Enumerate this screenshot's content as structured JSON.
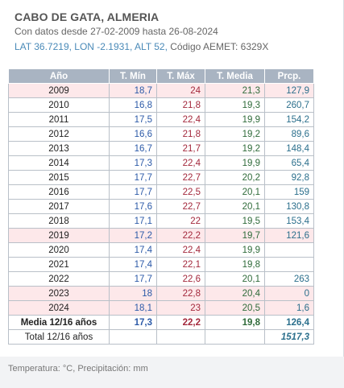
{
  "header": {
    "station": "CABO DE GATA, ALMERIA",
    "date_range": "Con datos desde 27-02-2009 hasta 26-08-2024",
    "coords": "LAT 36.7219, LON -2.1931, ALT 52,",
    "aemet_code": "Código AEMET: 6329X"
  },
  "table": {
    "columns": [
      "Año",
      "T. Mín",
      "T. Máx",
      "T. Media",
      "Prcp."
    ],
    "rows": [
      {
        "year": "2009",
        "tmin": "18,7",
        "tmax": "24",
        "tmed": "21,3",
        "prcp": "127,9",
        "highlight": true
      },
      {
        "year": "2010",
        "tmin": "16,8",
        "tmax": "21,8",
        "tmed": "19,3",
        "prcp": "260,7",
        "highlight": false
      },
      {
        "year": "2011",
        "tmin": "17,5",
        "tmax": "22,4",
        "tmed": "19,9",
        "prcp": "154,2",
        "highlight": false
      },
      {
        "year": "2012",
        "tmin": "16,6",
        "tmax": "21,8",
        "tmed": "19,2",
        "prcp": "89,6",
        "highlight": false
      },
      {
        "year": "2013",
        "tmin": "16,7",
        "tmax": "21,7",
        "tmed": "19,2",
        "prcp": "148,4",
        "highlight": false
      },
      {
        "year": "2014",
        "tmin": "17,3",
        "tmax": "22,4",
        "tmed": "19,9",
        "prcp": "65,4",
        "highlight": false
      },
      {
        "year": "2015",
        "tmin": "17,7",
        "tmax": "22,7",
        "tmed": "20,2",
        "prcp": "92,8",
        "highlight": false
      },
      {
        "year": "2016",
        "tmin": "17,7",
        "tmax": "22,5",
        "tmed": "20,1",
        "prcp": "159",
        "highlight": false
      },
      {
        "year": "2017",
        "tmin": "17,6",
        "tmax": "22,7",
        "tmed": "20,1",
        "prcp": "130,8",
        "highlight": false
      },
      {
        "year": "2018",
        "tmin": "17,1",
        "tmax": "22",
        "tmed": "19,5",
        "prcp": "153,4",
        "highlight": false
      },
      {
        "year": "2019",
        "tmin": "17,2",
        "tmax": "22,2",
        "tmed": "19,7",
        "prcp": "121,6",
        "highlight": true
      },
      {
        "year": "2020",
        "tmin": "17,4",
        "tmax": "22,4",
        "tmed": "19,9",
        "prcp": "",
        "highlight": false
      },
      {
        "year": "2021",
        "tmin": "17,4",
        "tmax": "22,1",
        "tmed": "19,8",
        "prcp": "",
        "highlight": false
      },
      {
        "year": "2022",
        "tmin": "17,7",
        "tmax": "22,6",
        "tmed": "20,1",
        "prcp": "263",
        "highlight": false
      },
      {
        "year": "2023",
        "tmin": "18",
        "tmax": "22,8",
        "tmed": "20,4",
        "prcp": "0",
        "highlight": true
      },
      {
        "year": "2024",
        "tmin": "18,1",
        "tmax": "23",
        "tmed": "20,5",
        "prcp": "1,6",
        "highlight": true
      }
    ],
    "media": {
      "label": "Media 12/16 años",
      "tmin": "17,3",
      "tmax": "22,2",
      "tmed": "19,8",
      "prcp": "126,4"
    },
    "total": {
      "label": "Total 12/16 años",
      "prcp": "1517,3"
    }
  },
  "footer": "Temperatura: °C, Precipitación: mm",
  "colors": {
    "header_bg": "#a9b4c2",
    "highlight_row": "#fde8ea",
    "tmin": "#2c5aa8",
    "tmax": "#a3283c",
    "tmed": "#2f6b3a",
    "prcp": "#2b6f8c"
  }
}
